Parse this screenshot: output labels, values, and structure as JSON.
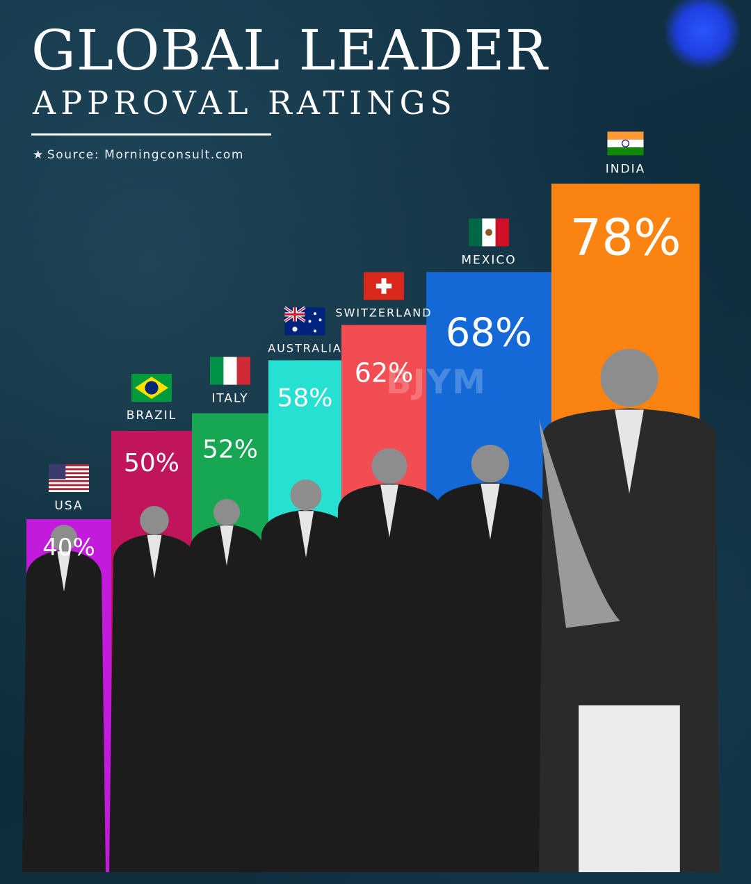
{
  "header": {
    "title": "GLOBAL LEADER",
    "subtitle": "APPROVAL RATINGS",
    "source_star": "★",
    "source": "Source: Morningconsult.com"
  },
  "watermark": "BJYM",
  "chart_data": {
    "type": "bar",
    "title": "GLOBAL LEADER APPROVAL RATINGS",
    "categories": [
      "USA",
      "BRAZIL",
      "ITALY",
      "AUSTRALIA",
      "SWITZERLAND",
      "MEXICO",
      "INDIA"
    ],
    "values": [
      40,
      50,
      52,
      58,
      62,
      68,
      78
    ],
    "value_labels": [
      "40%",
      "50%",
      "52%",
      "58%",
      "62%",
      "68%",
      "78%"
    ],
    "bar_colors": [
      "#c21bdc",
      "#c0155c",
      "#17a652",
      "#26e0d2",
      "#f24d52",
      "#1469d6",
      "#fb8311"
    ],
    "flags": [
      "usa-flag",
      "brazil-flag",
      "italy-flag",
      "australia-flag",
      "switzerland-flag",
      "mexico-flag",
      "india-flag"
    ],
    "ylabel": "",
    "xlabel": "",
    "grid": false,
    "legend": "none"
  }
}
